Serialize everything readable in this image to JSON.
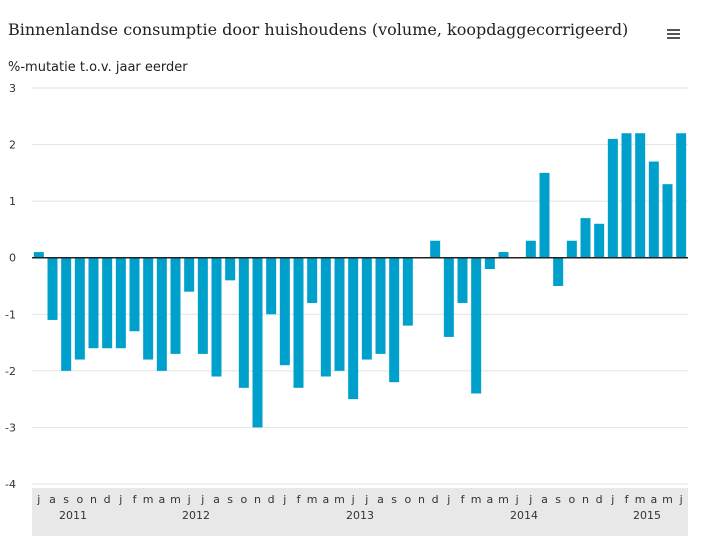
{
  "header": {
    "title": "Binnenlandse consumptie door huishoudens (volume, koopdaggecorrigeerd)",
    "unit_label": "%-mutatie t.o.v. jaar eerder",
    "menu_icon": "hamburger-menu-icon"
  },
  "colors": {
    "bar": "#00a0cc",
    "zero_line": "#222222",
    "grid": "#e2e2e2",
    "band": "#e8e8e8"
  },
  "chart_data": {
    "type": "bar",
    "title": "Binnenlandse consumptie door huishoudens (volume, koopdaggecorrigeerd)",
    "ylabel": "%-mutatie t.o.v. jaar eerder",
    "ylim": [
      -4,
      3
    ],
    "yticks": [
      3,
      2,
      1,
      0,
      -1,
      -2,
      -3,
      -4
    ],
    "grid": true,
    "legend": "none",
    "categories": [
      "j",
      "a",
      "s",
      "o",
      "n",
      "d",
      "j",
      "f",
      "m",
      "a",
      "m",
      "j",
      "j",
      "a",
      "s",
      "o",
      "n",
      "d",
      "j",
      "f",
      "m",
      "a",
      "m",
      "j",
      "j",
      "a",
      "s",
      "o",
      "n",
      "d",
      "j",
      "f",
      "m",
      "a",
      "m",
      "j",
      "j",
      "a",
      "s",
      "o",
      "n",
      "d",
      "j",
      "f",
      "m",
      "a",
      "m",
      "j"
    ],
    "year_labels": [
      {
        "label": "2011",
        "index": 2.5
      },
      {
        "label": "2012",
        "index": 11.5
      },
      {
        "label": "2013",
        "index": 23.5
      },
      {
        "label": "2014",
        "index": 35.5
      },
      {
        "label": "2015",
        "index": 44.5
      }
    ],
    "values": [
      0.1,
      -1.1,
      -2.0,
      -1.8,
      -1.6,
      -1.6,
      -1.6,
      -1.3,
      -1.8,
      -2.0,
      -1.7,
      -0.6,
      -1.7,
      -2.1,
      -0.4,
      -2.3,
      -3.0,
      -1.0,
      -1.9,
      -2.3,
      -0.8,
      -2.1,
      -2.0,
      -2.5,
      -1.8,
      -1.7,
      -2.2,
      -1.2,
      0.0,
      0.3,
      -1.4,
      -0.8,
      -2.4,
      -0.2,
      0.1,
      0.0,
      0.3,
      1.5,
      -0.5,
      0.3,
      0.7,
      0.6,
      2.1,
      2.2,
      2.2,
      1.7,
      1.3,
      2.2
    ]
  }
}
